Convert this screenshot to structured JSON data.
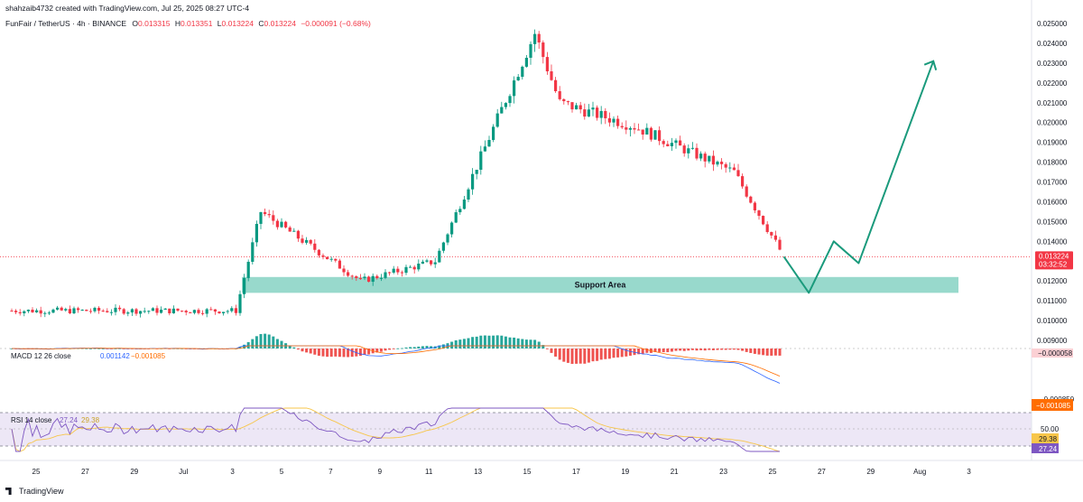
{
  "header": {
    "author_line": "shahzaib4732 created with TradingView.com, Jul 25, 2025 08:27 UTC-4",
    "symbol": "FunFair / TetherUS · 4h · BINANCE",
    "ohlc": [
      {
        "label": "O",
        "value": "0.013315"
      },
      {
        "label": "H",
        "value": "0.013351"
      },
      {
        "label": "L",
        "value": "0.013224"
      },
      {
        "label": "C",
        "value": "0.013224"
      }
    ],
    "change": "−0.000091 (−0.68%)"
  },
  "colors": {
    "up": "#089981",
    "down": "#f23645",
    "support_fill": "#98d9cc",
    "arrow": "#1a9a7c",
    "macd_line": "#2962ff",
    "signal_line": "#ff6d00",
    "rsi_line": "#7e57c2",
    "rsi_ma": "#f7c64a",
    "rsi_band": "#ede7f6"
  },
  "price_axis": {
    "labels": [
      "0.025000",
      "0.024000",
      "0.023000",
      "0.022000",
      "0.021000",
      "0.020000",
      "0.019000",
      "0.018000",
      "0.017000",
      "0.016000",
      "0.015000",
      "0.014000",
      "0.012000",
      "0.011000",
      "0.010000",
      "0.009000"
    ],
    "current_price": "0.013224",
    "countdown": "03:32:52"
  },
  "support": {
    "label": "Support Area",
    "low": 0.0114,
    "high": 0.0122
  },
  "macd": {
    "label": "MACD 12 26 close",
    "values": [
      "0.001142",
      "−0.001085"
    ],
    "axis_labels": [
      "−0.000058",
      "−0.000850"
    ],
    "tag": "−0.001085"
  },
  "rsi": {
    "label": "RSI 14 close",
    "values": [
      "27.24",
      "29.38"
    ],
    "axis_labels": [
      "50.00"
    ],
    "tag_ma": "29.38",
    "tag_rsi": "27.24"
  },
  "time_axis": {
    "labels": [
      "25",
      "27",
      "29",
      "Jul",
      "3",
      "5",
      "7",
      "9",
      "11",
      "13",
      "15",
      "17",
      "19",
      "21",
      "23",
      "25",
      "27",
      "29",
      "Aug",
      "3"
    ]
  },
  "footer": {
    "brand": "TradingView"
  },
  "chart_data": {
    "type": "candlestick",
    "title": "FunFair / TetherUS · 4h · BINANCE",
    "ylim": [
      0.0088,
      0.0252
    ],
    "key_points": [
      {
        "date": "Jun 24",
        "price": 0.0105
      },
      {
        "date": "Jul 3",
        "price": 0.0105
      },
      {
        "date": "Jul 4",
        "price": 0.0155
      },
      {
        "date": "Jul 8",
        "price": 0.012
      },
      {
        "date": "Jul 11",
        "price": 0.013
      },
      {
        "date": "Jul 15",
        "price": 0.0245
      },
      {
        "date": "Jul 16",
        "price": 0.021
      },
      {
        "date": "Jul 19",
        "price": 0.0198
      },
      {
        "date": "Jul 23",
        "price": 0.0175
      },
      {
        "date": "Jul 25",
        "price": 0.013224
      }
    ],
    "projection": [
      {
        "date": "Jul 25",
        "price": 0.013224
      },
      {
        "date": "Jul 26",
        "price": 0.0114
      },
      {
        "date": "Jul 27",
        "price": 0.014
      },
      {
        "date": "Jul 28",
        "price": 0.0129
      },
      {
        "date": "Jul 31",
        "price": 0.0231
      }
    ],
    "support_zone": [
      0.0114,
      0.0122
    ]
  }
}
